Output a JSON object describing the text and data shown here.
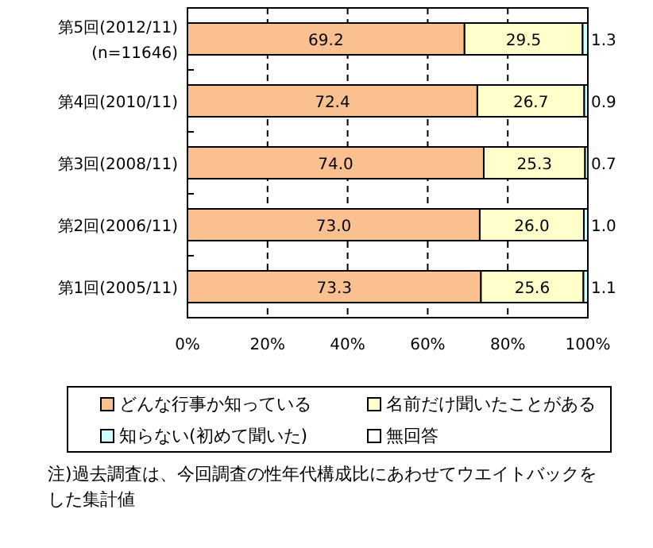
{
  "chart_data": {
    "type": "bar",
    "orientation": "horizontal",
    "stacked": true,
    "categories": [
      "第5回(2012/11)\n(n=11646)",
      "第4回(2010/11)",
      "第3回(2008/11)",
      "第2回(2006/11)",
      "第1回(2005/11)"
    ],
    "series": [
      {
        "name": "どんな行事か知っている",
        "color": "#fac090",
        "values": [
          69.2,
          72.4,
          74.0,
          73.0,
          73.3
        ],
        "value_labels": [
          "69.2",
          "72.4",
          "74.0",
          "73.0",
          "73.3"
        ]
      },
      {
        "name": "名前だけ聞いたことがある",
        "color": "#ffffcc",
        "values": [
          29.5,
          26.7,
          25.3,
          26.0,
          25.6
        ],
        "value_labels": [
          "29.5",
          "26.7",
          "25.3",
          "26.0",
          "25.6"
        ]
      },
      {
        "name": "知らない(初めて聞いた)",
        "color": "#ccffff",
        "values": [
          1.3,
          0.9,
          0.7,
          1.0,
          1.1
        ],
        "value_labels": [
          "1.3",
          "0.9",
          "0.7",
          "1.0",
          "1.1"
        ]
      },
      {
        "name": "無回答",
        "color": "#ffffff",
        "values": [
          null,
          null,
          null,
          null,
          null
        ]
      }
    ],
    "xlim": [
      0,
      100
    ],
    "xticks": [
      {
        "value": 0,
        "label": "0%"
      },
      {
        "value": 20,
        "label": "20%"
      },
      {
        "value": 40,
        "label": "40%"
      },
      {
        "value": 60,
        "label": "60%"
      },
      {
        "value": 80,
        "label": "80%"
      },
      {
        "value": 100,
        "label": "100%"
      }
    ],
    "grid": "x",
    "legend": "bottom",
    "annotations": [
      "注)過去調査は、今回調査の性年代構成比にあわせてウエイトバックをした集計値"
    ]
  }
}
